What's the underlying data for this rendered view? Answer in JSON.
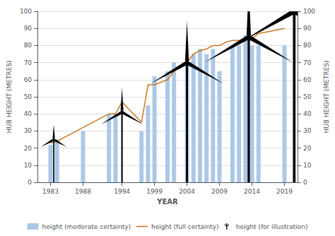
{
  "chart_data": {
    "type": "bar",
    "xlabel": "YEAR",
    "ylabel": "HUB HEIGHT (METRES)",
    "y2label": "HUB HEIGHT (METRES)",
    "xlim": [
      1981,
      2021
    ],
    "xticks": [
      1983,
      1988,
      1994,
      1999,
      2004,
      2009,
      2014,
      2019
    ],
    "ylim": [
      0,
      100
    ],
    "yticks": [
      0,
      10,
      20,
      30,
      40,
      50,
      60,
      70,
      80,
      90,
      100
    ],
    "y2lim": [
      0,
      100
    ],
    "y2ticks": [
      0,
      10,
      20,
      30,
      40,
      50,
      60,
      70,
      80,
      90,
      100
    ],
    "grid": true,
    "legend": "bottom",
    "series": [
      {
        "name": "height (moderate certainty)",
        "type": "bar",
        "color": "#adc8e6",
        "x": [
          1983,
          1984,
          1988,
          1992,
          1993,
          1997,
          1998,
          1999,
          2001,
          2002,
          2004,
          2005,
          2006,
          2007,
          2008,
          2009,
          2011,
          2012,
          2013,
          2014,
          2015,
          2019
        ],
        "values": [
          22,
          25,
          30,
          40,
          40,
          30,
          45,
          62,
          65,
          70,
          70,
          75,
          78,
          75,
          78,
          65,
          80,
          80,
          86,
          80,
          80,
          80
        ]
      },
      {
        "name": "height (full certainty)",
        "type": "line",
        "color": "#c87820",
        "x": [
          1983,
          1984,
          1992,
          1993,
          1994,
          1997,
          1998,
          1999,
          2001,
          2002,
          2003,
          2004,
          2005,
          2006,
          2007,
          2008,
          2009,
          2010,
          2011,
          2012,
          2013,
          2014,
          2015,
          2019
        ],
        "values": [
          23,
          24,
          40,
          40,
          47,
          35,
          57,
          57,
          60,
          65,
          68,
          70,
          75,
          77,
          78,
          80,
          80,
          82,
          83,
          83,
          84,
          84,
          87,
          90
        ]
      },
      {
        "name": "height (for illustration)",
        "type": "turbine",
        "color": "#000000",
        "x": [
          1983.5,
          1994.0,
          2004.0,
          2013.5,
          2020.5
        ],
        "values": [
          25,
          41,
          70,
          85,
          100
        ]
      }
    ]
  }
}
